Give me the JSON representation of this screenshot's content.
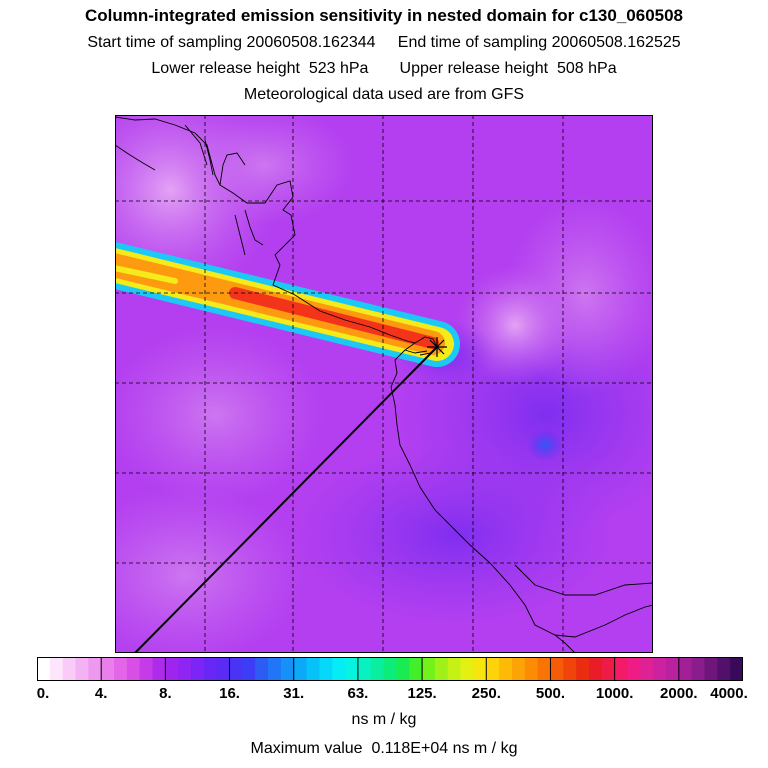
{
  "header": {
    "title": "Column-integrated emission sensitivity in nested domain for c130_060508",
    "line1": "Start time of sampling 20060508.162344     End time of sampling 20060508.162525",
    "line2": "Lower release height  523 hPa       Upper release height  508 hPa",
    "line3": "Meteorological data used are from GFS"
  },
  "colorbar": {
    "ticks": [
      "0.",
      "4.",
      "8.",
      "16.",
      "31.",
      "63.",
      "125.",
      "250.",
      "500.",
      "1000.",
      "2000.",
      "4000."
    ],
    "colors": [
      "#ffffff",
      "#fde6fb",
      "#f9ccf7",
      "#f3b2f3",
      "#ee99ef",
      "#e97feb",
      "#e466e8",
      "#d84fe6",
      "#c33ce8",
      "#ad2be9",
      "#9f25ee",
      "#8f25f2",
      "#7c25f5",
      "#6927f5",
      "#5a2cf3",
      "#4a33f4",
      "#3b3ef6",
      "#2d5cf5",
      "#2076f6",
      "#1591f7",
      "#0ca9f8",
      "#07c1f9",
      "#05d8f9",
      "#05ecf5",
      "#06f3e1",
      "#07f1c2",
      "#09ee9f",
      "#0cec7a",
      "#19ec52",
      "#43ee2a",
      "#73f11b",
      "#9ff118",
      "#c6f115",
      "#e4ef12",
      "#f7e60e",
      "#fdd30a",
      "#fdba07",
      "#fca305",
      "#fb8c04",
      "#f97405",
      "#f55c07",
      "#f0440a",
      "#ea2d0f",
      "#e81d27",
      "#ee1b47",
      "#f31a67",
      "#ee1c84",
      "#de2194",
      "#cd22a0",
      "#b9219f",
      "#a21f97",
      "#8a1c8b",
      "#6f167b",
      "#53106a",
      "#3a0a5a"
    ],
    "units": "ns m / kg",
    "max_label": "Maximum value  0.118E+04 ns m / kg"
  },
  "map": {
    "background_color": "#b33ff0",
    "plume_colors": [
      "#1cc9f5",
      "#f5ea1a",
      "#fd9a10",
      "#f3341b"
    ],
    "release_marker": "star-marker-icon"
  }
}
